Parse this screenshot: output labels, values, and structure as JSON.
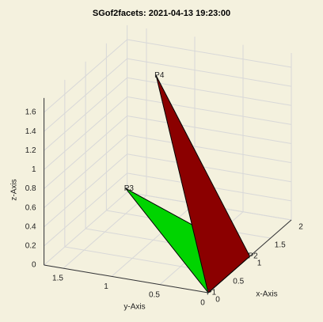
{
  "chart_data": {
    "type": "patch3d",
    "title": "SGof2facets: 2021-04-13 19:23:00",
    "x_label": "x-Axis",
    "y_label": "y-Axis",
    "z_label": "z-Axis",
    "xlim": [
      0,
      2
    ],
    "ylim": [
      0,
      1.7
    ],
    "zlim": [
      0,
      1.75
    ],
    "xticks": [
      0,
      0.5,
      1,
      1.5,
      2
    ],
    "yticks": [
      0,
      0.5,
      1,
      1.5
    ],
    "zticks": [
      0,
      0.2,
      0.4,
      0.6,
      0.8,
      1,
      1.2,
      1.4,
      1.6
    ],
    "grid": true,
    "points": [
      {
        "label": "P1",
        "x": 0,
        "y": 0,
        "z": 0
      },
      {
        "label": "P2",
        "x": 1,
        "y": 0,
        "z": 0
      },
      {
        "label": "P3",
        "x": 0.5,
        "y": 1.07,
        "z": 0.72
      },
      {
        "label": "P4",
        "x": 1,
        "y": 0.97,
        "z": 1.73
      }
    ],
    "facets": [
      {
        "color": "#00d400",
        "vertices": [
          0,
          1,
          2
        ]
      },
      {
        "color": "#8b0000",
        "vertices": [
          0,
          1,
          3
        ]
      }
    ]
  }
}
